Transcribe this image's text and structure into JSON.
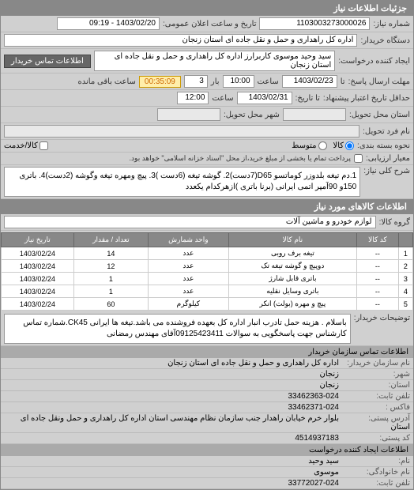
{
  "header": {
    "title": "جزئیات اطلاعات نیاز"
  },
  "info": {
    "need_number_label": "شماره نیاز:",
    "need_number": "1103003273000026",
    "announce_label": "تاریخ و ساعت اعلان عمومی:",
    "announce_value": "1403/02/20 - 09:19",
    "buyer_org_label": "دستگاه خریدار:",
    "buyer_org": "اداره کل راهداری و حمل و نقل جاده ای استان زنجان",
    "requester_label": "ایجاد کننده درخواست:",
    "requester": "سید وحید موسوی کاربرارز اداره کل راهداری و حمل و نقل جاده ای استان زنجان",
    "contact_btn": "اطلاعات تماس خریدار",
    "deadline_send_label": "مهلت ارسال پاسخ:",
    "deadline_to_label": "تا",
    "deadline_date": "1403/02/23",
    "deadline_time_label": "ساعت",
    "deadline_time": "10:00",
    "attempt_label": "بار",
    "attempt_value": "3",
    "timer": "00:35:09",
    "remaining_label": "ساعت باقی مانده",
    "validity_label": "حداقل تاریخ اعتبار پیشنهاد:",
    "validity_to_label": "تا تاریخ:",
    "validity_date": "1403/02/31",
    "validity_time_label": "ساعت",
    "validity_time": "12:00",
    "delivery_state_label": "استان محل تحویل:",
    "delivery_city_label": "شهر محل تحویل:",
    "name_address_label": "نام فرد تحویل:",
    "pack_label": "نحوه بسته بندی:",
    "pack_opt1": "کالا",
    "pack_opt2": "متوسط",
    "mass_label": "کالا/خدمت",
    "measure_label": "معیار ارزیابی:",
    "measure_note": "پرداخت تمام یا بخشی از مبلغ خرید،از محل \"اسناد خزانه اسلامی\" خواهد بود.",
    "desc_label": "شرح کلی نیاز:",
    "desc_text": "1.دم تیغه بلدوزر کوماتسو D65(7دست)2. گوشه تیغه (6دست )3. پیچ ومهره تیغه وگوشه (2دست)4. باتری 150و 90آمپر اتمی ایرانی (برنا باتری )ازهرکدام یکعدد"
  },
  "items_section": {
    "title": "اطلاعات کالاهای مورد نیاز",
    "group_label": "گروه کالا:",
    "group_value": "لوازم خودرو و ماشین آلات",
    "columns": [
      "",
      "کد کالا",
      "نام کالا",
      "واحد شمارش",
      "تعداد / مقدار",
      "تاریخ نیاز"
    ],
    "rows": [
      [
        "1",
        "--",
        "تیغه برف روبی",
        "عدد",
        "14",
        "1403/02/24"
      ],
      [
        "2",
        "--",
        "دوپیچ و گوشه تیغه تک",
        "عدد",
        "12",
        "1403/02/24"
      ],
      [
        "3",
        "--",
        "باتری قابل شارژ",
        "عدد",
        "1",
        "1403/02/24"
      ],
      [
        "4",
        "--",
        "باتری وسایل نقلیه",
        "عدد",
        "1",
        "1403/02/24"
      ],
      [
        "5",
        "--",
        "پیچ و مهره (بولت) انکر",
        "کیلوگرم",
        "60",
        "1403/02/24"
      ]
    ]
  },
  "supplier_notes": {
    "label": "توضیحات خریدار:",
    "text": "باسلام . هزینه حمل تادرب انبار اداره کل بعهده فروشنده می باشد.تیغه ها ایرانی CK45.شماره تماس کارشناس جهت پاسخگویی به سوالات 09125423411آقای مهندس رمضانی"
  },
  "contact": {
    "header": "اطلاعات تماس سازمان خریدار",
    "org_label": "نام سازمان خریدار:",
    "org": "اداره کل راهداری و حمل و نقل جاده ای استان زنجان",
    "city_label": "شهر:",
    "city": "زنجان",
    "state_label": "استان:",
    "state": "زنجان",
    "phone_label": "تلفن ثابت:",
    "phone": "33462363-024",
    "fax_label": "فاکس :",
    "fax": "33462371-024",
    "post_label": "آدرس پستی:",
    "post": "بلوار خرم خیابان راهدار جنب سازمان نظام مهندسی استان اداره کل راهداری و حمل ونقل جاده ای استان",
    "postcode_label": "کد پستی:",
    "postcode": "4514937183",
    "creator_header": "اطلاعات ایجاد کننده درخواست",
    "fname_label": "نام:",
    "fname": "سید وحید",
    "lname_label": "نام خانوادگی:",
    "lname": "موسوی",
    "cphone_label": "تلفن ثابت:",
    "cphone": "33772027-024"
  }
}
